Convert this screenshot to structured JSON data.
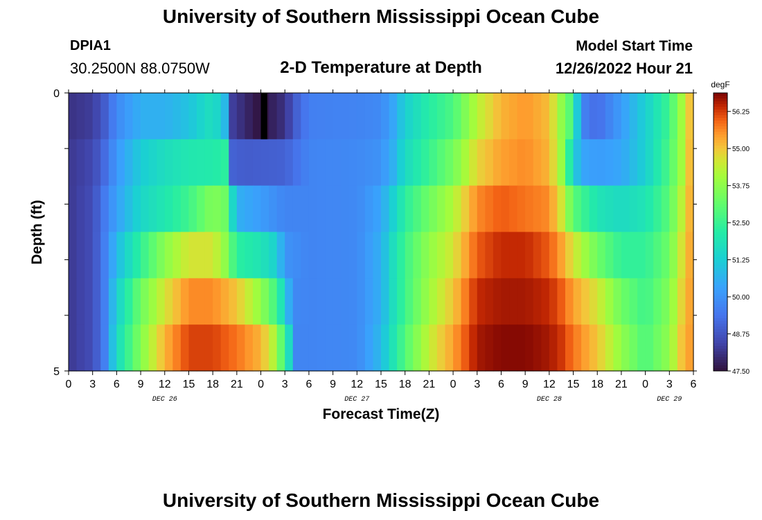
{
  "header": {
    "title": "University of Southern Mississippi Ocean Cube",
    "station_id": "DPIA1",
    "station_coords": "30.2500N  88.0750W",
    "chart_title": "2-D Temperature at Depth",
    "start_label": "Model Start Time",
    "start_value": "12/26/2022 Hour 21"
  },
  "footer": {
    "title": "University of Southern Mississippi Ocean Cube"
  },
  "chart_data": {
    "type": "heatmap",
    "title": "2-D Temperature at Depth",
    "xlabel": "Forecast Time(Z)",
    "ylabel": "Depth (ft)",
    "x_ticks": [
      "0",
      "3",
      "6",
      "9",
      "12",
      "15",
      "18",
      "21",
      "0",
      "3",
      "6",
      "9",
      "12",
      "15",
      "18",
      "21",
      "0",
      "3",
      "6",
      "9",
      "12",
      "15",
      "18",
      "21",
      "0",
      "3",
      "6"
    ],
    "date_labels": [
      {
        "label": "DEC 26",
        "tick_index": 4
      },
      {
        "label": "DEC 27",
        "tick_index": 12
      },
      {
        "label": "DEC 28",
        "tick_index": 20
      },
      {
        "label": "DEC 29",
        "tick_index": 25
      }
    ],
    "y_tick_labels": [
      "0",
      "5"
    ],
    "y_range_ft": [
      0,
      5
    ],
    "colorbar": {
      "unit": "degF",
      "min": 47.5,
      "max": 56.875,
      "labels": [
        "56.25",
        "55.00",
        "53.75",
        "52.50",
        "51.25",
        "50.00",
        "48.75",
        "47.50"
      ],
      "label_values": [
        56.25,
        55.0,
        53.75,
        52.5,
        51.25,
        50.0,
        48.75,
        47.5
      ]
    },
    "hours_range": [
      0,
      78
    ],
    "depth_rows_ft": [
      0,
      1,
      2,
      3,
      4,
      5
    ],
    "rows": [
      [
        [
          0,
          48.1
        ],
        [
          3,
          48.3
        ],
        [
          4.5,
          48.9
        ],
        [
          6,
          49.8
        ],
        [
          9,
          50.6
        ],
        [
          12,
          50.6
        ],
        [
          15,
          51.0
        ],
        [
          18,
          51.8
        ],
        [
          19.5,
          50.8
        ],
        [
          20.5,
          48.3
        ],
        [
          23,
          47.7
        ],
        [
          24,
          47.5
        ],
        [
          27,
          48.1
        ],
        [
          28.5,
          49.0
        ],
        [
          30,
          49.6
        ],
        [
          36,
          49.7
        ],
        [
          39,
          49.8
        ],
        [
          40.5,
          50.4
        ],
        [
          42,
          51.3
        ],
        [
          45,
          52.2
        ],
        [
          48,
          52.8
        ],
        [
          51,
          54.3
        ],
        [
          54,
          55.2
        ],
        [
          57,
          55.5
        ],
        [
          60,
          55.1
        ],
        [
          61.5,
          53.8
        ],
        [
          63,
          52.6
        ],
        [
          64,
          49.7
        ],
        [
          66,
          49.2
        ],
        [
          69,
          50.2
        ],
        [
          72,
          51.3
        ],
        [
          75,
          52.6
        ],
        [
          76.5,
          54.0
        ],
        [
          78,
          55.5
        ]
      ],
      [
        [
          0,
          48.2
        ],
        [
          3,
          48.5
        ],
        [
          4.5,
          49.2
        ],
        [
          6,
          50.1
        ],
        [
          9,
          51.2
        ],
        [
          12,
          51.7
        ],
        [
          15,
          52.0
        ],
        [
          18,
          52.1
        ],
        [
          19.5,
          52.3
        ],
        [
          20.5,
          49.0
        ],
        [
          22,
          48.9
        ],
        [
          27,
          49.0
        ],
        [
          30,
          49.7
        ],
        [
          36,
          49.8
        ],
        [
          39,
          50.0
        ],
        [
          40.5,
          50.6
        ],
        [
          42,
          51.6
        ],
        [
          45,
          52.5
        ],
        [
          48,
          53.4
        ],
        [
          51,
          54.8
        ],
        [
          54,
          55.4
        ],
        [
          57,
          55.6
        ],
        [
          60,
          55.2
        ],
        [
          61.5,
          53.9
        ],
        [
          63,
          51.4
        ],
        [
          64,
          50.4
        ],
        [
          66,
          50.2
        ],
        [
          69,
          50.4
        ],
        [
          72,
          51.3
        ],
        [
          75,
          52.8
        ],
        [
          76.5,
          54.0
        ],
        [
          78,
          55.6
        ]
      ],
      [
        [
          0,
          48.2
        ],
        [
          3,
          48.6
        ],
        [
          4.5,
          49.5
        ],
        [
          6,
          50.3
        ],
        [
          9,
          51.5
        ],
        [
          12,
          52.0
        ],
        [
          15,
          52.6
        ],
        [
          18,
          53.6
        ],
        [
          19.5,
          53.3
        ],
        [
          21,
          50.6
        ],
        [
          24,
          50.2
        ],
        [
          27,
          49.7
        ],
        [
          30,
          49.7
        ],
        [
          36,
          49.8
        ],
        [
          39,
          50.4
        ],
        [
          40.5,
          51.3
        ],
        [
          42,
          52.3
        ],
        [
          45,
          53.3
        ],
        [
          48,
          54.2
        ],
        [
          51,
          55.6
        ],
        [
          54,
          56.0
        ],
        [
          57,
          55.8
        ],
        [
          60,
          55.6
        ],
        [
          61.5,
          54.6
        ],
        [
          63,
          53.0
        ],
        [
          66,
          51.9
        ],
        [
          69,
          51.6
        ],
        [
          72,
          51.9
        ],
        [
          75,
          53.0
        ],
        [
          76.5,
          54.3
        ],
        [
          78,
          55.6
        ]
      ],
      [
        [
          0,
          48.2
        ],
        [
          3,
          48.6
        ],
        [
          4.5,
          49.6
        ],
        [
          6,
          50.8
        ],
        [
          9,
          52.4
        ],
        [
          12,
          53.7
        ],
        [
          15,
          54.6
        ],
        [
          18,
          54.6
        ],
        [
          19.5,
          53.8
        ],
        [
          21,
          52.3
        ],
        [
          24,
          51.9
        ],
        [
          26,
          51.3
        ],
        [
          27,
          50.0
        ],
        [
          30,
          49.7
        ],
        [
          36,
          49.8
        ],
        [
          39,
          50.6
        ],
        [
          40.5,
          51.7
        ],
        [
          42,
          52.6
        ],
        [
          45,
          53.8
        ],
        [
          48,
          54.6
        ],
        [
          51,
          56.0
        ],
        [
          54,
          56.4
        ],
        [
          57,
          56.4
        ],
        [
          60,
          56.0
        ],
        [
          61.5,
          55.4
        ],
        [
          63,
          54.6
        ],
        [
          66,
          53.3
        ],
        [
          69,
          52.4
        ],
        [
          72,
          52.4
        ],
        [
          75,
          53.3
        ],
        [
          76.5,
          54.6
        ],
        [
          78,
          55.6
        ]
      ],
      [
        [
          0,
          48.2
        ],
        [
          3,
          48.6
        ],
        [
          4.5,
          49.6
        ],
        [
          6,
          51.3
        ],
        [
          9,
          53.3
        ],
        [
          12,
          54.6
        ],
        [
          15,
          55.6
        ],
        [
          18,
          55.6
        ],
        [
          21,
          55.0
        ],
        [
          24,
          53.8
        ],
        [
          26,
          52.6
        ],
        [
          27,
          51.3
        ],
        [
          28,
          49.8
        ],
        [
          30,
          49.7
        ],
        [
          36,
          49.8
        ],
        [
          39,
          50.6
        ],
        [
          40.5,
          51.7
        ],
        [
          42,
          52.6
        ],
        [
          45,
          54.0
        ],
        [
          48,
          55.0
        ],
        [
          51,
          56.4
        ],
        [
          54,
          56.6
        ],
        [
          57,
          56.6
        ],
        [
          60,
          56.4
        ],
        [
          61.5,
          56.0
        ],
        [
          63,
          55.4
        ],
        [
          66,
          54.6
        ],
        [
          69,
          53.3
        ],
        [
          72,
          52.6
        ],
        [
          75,
          53.6
        ],
        [
          76.5,
          54.8
        ],
        [
          78,
          55.6
        ]
      ],
      [
        [
          0,
          48.2
        ],
        [
          3,
          48.6
        ],
        [
          4.5,
          49.6
        ],
        [
          6,
          51.6
        ],
        [
          9,
          53.6
        ],
        [
          12,
          55.2
        ],
        [
          15,
          56.2
        ],
        [
          18,
          56.2
        ],
        [
          21,
          55.8
        ],
        [
          24,
          55.2
        ],
        [
          26,
          54.0
        ],
        [
          27,
          52.3
        ],
        [
          28,
          51.0
        ],
        [
          28.5,
          49.7
        ],
        [
          30,
          49.7
        ],
        [
          36,
          49.8
        ],
        [
          39,
          50.8
        ],
        [
          40.5,
          51.9
        ],
        [
          42,
          52.9
        ],
        [
          45,
          54.4
        ],
        [
          48,
          55.4
        ],
        [
          51,
          56.6
        ],
        [
          54,
          56.8
        ],
        [
          57,
          56.8
        ],
        [
          60,
          56.6
        ],
        [
          61.5,
          56.3
        ],
        [
          63,
          55.8
        ],
        [
          66,
          55.0
        ],
        [
          69,
          53.8
        ],
        [
          72,
          52.8
        ],
        [
          75,
          53.8
        ],
        [
          76.5,
          55.0
        ],
        [
          78,
          55.6
        ]
      ]
    ],
    "column_step_hours": 1
  }
}
